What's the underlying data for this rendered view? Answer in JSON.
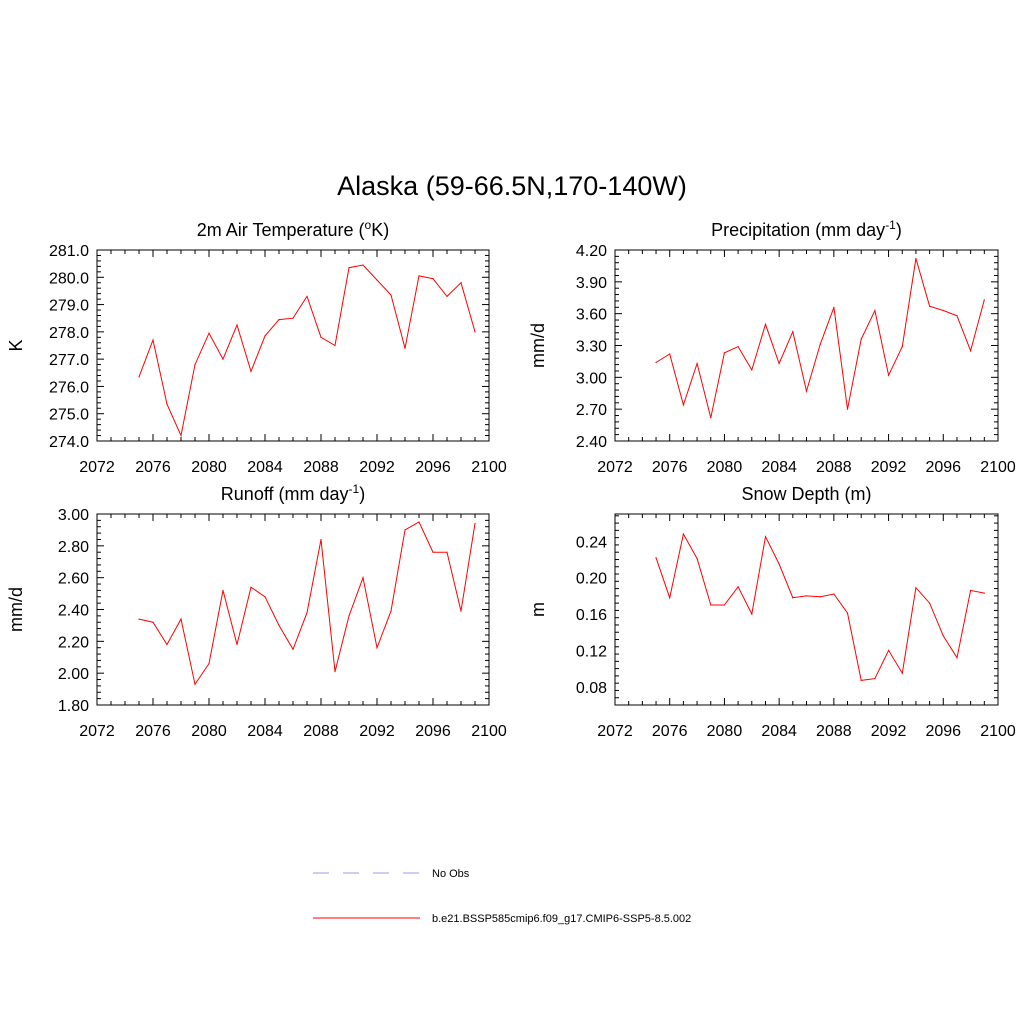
{
  "figure_title": "Alaska (59-66.5N,170-140W)",
  "legend": [
    {
      "label": "No Obs",
      "color": "#9999ee",
      "dash": true
    },
    {
      "label": "b.e21.BSSP585cmip6.f09_g17.CMIP6-SSP5-8.5.002",
      "color": "#ff0000",
      "dash": false
    }
  ],
  "chart_data": [
    {
      "type": "line",
      "title": "2m Air Temperature (",
      "title_sup": "o",
      "title_after": "K)",
      "ylabel": "K",
      "xlim": [
        2072,
        2100
      ],
      "ylim": [
        274.0,
        281.0
      ],
      "xticks": [
        "2072",
        "2076",
        "2080",
        "2084",
        "2088",
        "2092",
        "2096",
        "2100"
      ],
      "yticks": [
        "274.0",
        "275.0",
        "276.0",
        "277.0",
        "278.0",
        "279.0",
        "280.0",
        "281.0"
      ],
      "series": [
        {
          "color": "#ff0000",
          "x": [
            2075,
            2076,
            2077,
            2078,
            2079,
            2080,
            2081,
            2082,
            2083,
            2084,
            2085,
            2086,
            2087,
            2088,
            2089,
            2090,
            2091,
            2092,
            2093,
            2094,
            2095,
            2096,
            2097,
            2098,
            2099
          ],
          "values": [
            276.35,
            277.7,
            275.35,
            274.2,
            276.8,
            277.95,
            277.0,
            278.25,
            276.55,
            277.85,
            278.45,
            278.5,
            279.3,
            277.8,
            277.5,
            280.35,
            280.45,
            279.9,
            279.35,
            277.4,
            280.05,
            279.95,
            279.3,
            279.8,
            278.0
          ]
        }
      ]
    },
    {
      "type": "line",
      "title": "Precipitation (mm day",
      "title_sup": "-1",
      "title_after": ")",
      "ylabel": "mm/d",
      "xlim": [
        2072,
        2100
      ],
      "ylim": [
        2.4,
        4.2
      ],
      "xticks": [
        "2072",
        "2076",
        "2080",
        "2084",
        "2088",
        "2092",
        "2096",
        "2100"
      ],
      "yticks": [
        "2.40",
        "2.70",
        "3.00",
        "3.30",
        "3.60",
        "3.90",
        "4.20"
      ],
      "series": [
        {
          "color": "#ff0000",
          "x": [
            2075,
            2076,
            2077,
            2078,
            2079,
            2080,
            2081,
            2082,
            2083,
            2084,
            2085,
            2086,
            2087,
            2088,
            2089,
            2090,
            2091,
            2092,
            2093,
            2094,
            2095,
            2096,
            2097,
            2098,
            2099
          ],
          "values": [
            3.14,
            3.22,
            2.74,
            3.13,
            2.62,
            3.23,
            3.29,
            3.07,
            3.5,
            3.13,
            3.43,
            2.87,
            3.31,
            3.66,
            2.7,
            3.36,
            3.63,
            3.02,
            3.29,
            4.12,
            3.67,
            3.63,
            3.58,
            3.25,
            3.73
          ]
        }
      ]
    },
    {
      "type": "line",
      "title": "Runoff (mm day",
      "title_sup": "-1",
      "title_after": ")",
      "ylabel": "mm/d",
      "xlim": [
        2072,
        2100
      ],
      "ylim": [
        1.8,
        3.0
      ],
      "xticks": [
        "2072",
        "2076",
        "2080",
        "2084",
        "2088",
        "2092",
        "2096",
        "2100"
      ],
      "yticks": [
        "1.80",
        "2.00",
        "2.20",
        "2.40",
        "2.60",
        "2.80",
        "3.00"
      ],
      "series": [
        {
          "color": "#ff0000",
          "x": [
            2075,
            2076,
            2077,
            2078,
            2079,
            2080,
            2081,
            2082,
            2083,
            2084,
            2085,
            2086,
            2087,
            2088,
            2089,
            2090,
            2091,
            2092,
            2093,
            2094,
            2095,
            2096,
            2097,
            2098,
            2099
          ],
          "values": [
            2.34,
            2.32,
            2.18,
            2.34,
            1.93,
            2.06,
            2.52,
            2.18,
            2.54,
            2.48,
            2.3,
            2.15,
            2.38,
            2.84,
            2.01,
            2.36,
            2.6,
            2.16,
            2.39,
            2.9,
            2.95,
            2.76,
            2.76,
            2.39,
            2.94
          ]
        }
      ]
    },
    {
      "type": "line",
      "title": "Snow Depth (m)",
      "title_sup": "",
      "title_after": "",
      "ylabel": "m",
      "xlim": [
        2072,
        2100
      ],
      "ylim": [
        0.06,
        0.27
      ],
      "xticks": [
        "2072",
        "2076",
        "2080",
        "2084",
        "2088",
        "2092",
        "2096",
        "2100"
      ],
      "yticks": [
        "0.08",
        "0.12",
        "0.16",
        "0.20",
        "0.24"
      ],
      "series": [
        {
          "color": "#ff0000",
          "x": [
            2075,
            2076,
            2077,
            2078,
            2079,
            2080,
            2081,
            2082,
            2083,
            2084,
            2085,
            2086,
            2087,
            2088,
            2089,
            2090,
            2091,
            2092,
            2093,
            2094,
            2095,
            2096,
            2097,
            2098,
            2099
          ],
          "values": [
            0.222,
            0.178,
            0.248,
            0.221,
            0.17,
            0.17,
            0.19,
            0.16,
            0.245,
            0.215,
            0.178,
            0.18,
            0.179,
            0.182,
            0.161,
            0.087,
            0.089,
            0.12,
            0.095,
            0.189,
            0.172,
            0.136,
            0.112,
            0.186,
            0.183
          ]
        }
      ]
    }
  ]
}
